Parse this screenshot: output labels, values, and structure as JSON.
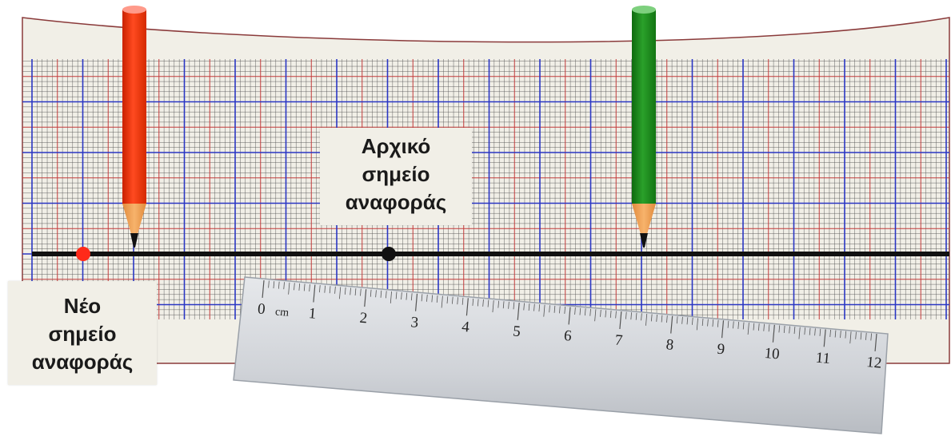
{
  "labels": {
    "initial_reference": [
      "Αρχικό",
      "σημείο",
      "αναφοράς"
    ],
    "new_reference": [
      "Νέο",
      "σημείο",
      "αναφοράς"
    ]
  },
  "ruler": {
    "unit": "cm",
    "ticks": [
      "0",
      "1",
      "2",
      "3",
      "4",
      "5",
      "6",
      "7",
      "8",
      "9",
      "10",
      "11",
      "12"
    ]
  },
  "colors": {
    "paper": "#f1efe7",
    "grid_major": "#2a36c4",
    "grid_minor": "#c23b3b",
    "grid_fine": "#555555",
    "track_line": "#111111",
    "initial_point": "#111111",
    "new_point": "#ff2a1a",
    "red_pencil": "#ff3300",
    "green_pencil": "#1a8c1a",
    "pencil_wood": "#f4a35a",
    "ruler": "#d6d8dc"
  },
  "icons": [
    "red-pencil-icon",
    "green-pencil-icon",
    "ruler-icon"
  ]
}
